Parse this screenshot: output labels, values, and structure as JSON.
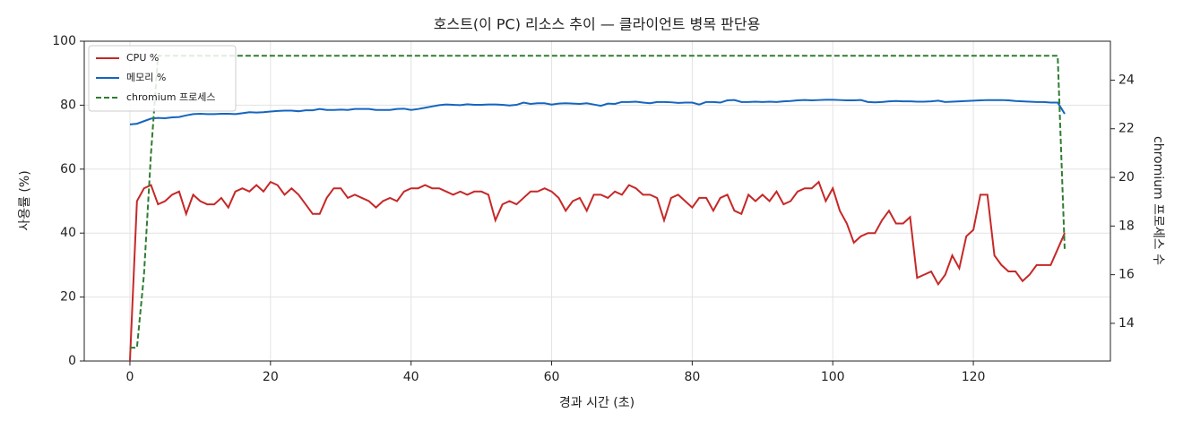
{
  "chart_data": {
    "type": "line",
    "title": "호스트(이 PC) 리소스 추이 — 클라이언트 병목 판단용",
    "xlabel": "경과 시간 (초)",
    "ylabel": "사용률 (%)",
    "y2label": "chromium 프로세스 수",
    "x": [
      0,
      1,
      2,
      3,
      4,
      5,
      6,
      7,
      8,
      9,
      10,
      11,
      12,
      13,
      14,
      15,
      16,
      17,
      18,
      19,
      20,
      21,
      22,
      23,
      24,
      25,
      26,
      27,
      28,
      29,
      30,
      31,
      32,
      33,
      34,
      35,
      36,
      37,
      38,
      39,
      40,
      41,
      42,
      43,
      44,
      45,
      46,
      47,
      48,
      49,
      50,
      51,
      52,
      53,
      54,
      55,
      56,
      57,
      58,
      59,
      60,
      61,
      62,
      63,
      64,
      65,
      66,
      67,
      68,
      69,
      70,
      71,
      72,
      73,
      74,
      75,
      76,
      77,
      78,
      79,
      80,
      81,
      82,
      83,
      84,
      85,
      86,
      87,
      88,
      89,
      90,
      91,
      92,
      93,
      94,
      95,
      96,
      97,
      98,
      99,
      100,
      101,
      102,
      103,
      104,
      105,
      106,
      107,
      108,
      109,
      110,
      111,
      112,
      113,
      114,
      115,
      116,
      117,
      118,
      119,
      120,
      121,
      122,
      123,
      124,
      125,
      126,
      127,
      128,
      129,
      130,
      131,
      132,
      133
    ],
    "series": [
      {
        "name": "CPU %",
        "color": "#c62828",
        "dash": false,
        "values": [
          0,
          50,
          54,
          55,
          49,
          50,
          52,
          53,
          46,
          52,
          50,
          49,
          49,
          51,
          48,
          53,
          54,
          53,
          55,
          53,
          56,
          55,
          52,
          54,
          52,
          49,
          46,
          46,
          51,
          54,
          54,
          51,
          52,
          51,
          50,
          48,
          50,
          51,
          50,
          53,
          54,
          54,
          55,
          54,
          54,
          53,
          52,
          53,
          52,
          53,
          53,
          52,
          44,
          49,
          50,
          49,
          51,
          53,
          53,
          54,
          53,
          51,
          47,
          50,
          51,
          47,
          52,
          52,
          51,
          53,
          52,
          55,
          54,
          52,
          52,
          51,
          44,
          51,
          52,
          50,
          48,
          51,
          51,
          47,
          51,
          52,
          47,
          46,
          52,
          50,
          52,
          50,
          53,
          49,
          50,
          53,
          54,
          54,
          56,
          50,
          54,
          47,
          43,
          37,
          39,
          40,
          40,
          44,
          47,
          43,
          43,
          45,
          26,
          27,
          28,
          24,
          27,
          33,
          29,
          39,
          41,
          52,
          52,
          33,
          30,
          28,
          28,
          25,
          27,
          30,
          30,
          30,
          35,
          40
        ]
      },
      {
        "name": "메모리 %",
        "color": "#1565c0",
        "dash": false,
        "values": [
          74,
          74.2,
          75,
          75.8,
          76,
          75.9,
          76.2,
          76.3,
          76.8,
          77.2,
          77.3,
          77.2,
          77.2,
          77.3,
          77.3,
          77.2,
          77.5,
          77.8,
          77.7,
          77.8,
          78,
          78.2,
          78.3,
          78.3,
          78.1,
          78.4,
          78.4,
          78.8,
          78.5,
          78.5,
          78.6,
          78.5,
          78.8,
          78.8,
          78.8,
          78.5,
          78.5,
          78.5,
          78.8,
          78.9,
          78.5,
          78.8,
          79.2,
          79.6,
          80,
          80.2,
          80.1,
          80,
          80.3,
          80.1,
          80.1,
          80.2,
          80.2,
          80.1,
          79.9,
          80.1,
          80.8,
          80.4,
          80.6,
          80.6,
          80.2,
          80.5,
          80.6,
          80.5,
          80.4,
          80.6,
          80.2,
          79.8,
          80.5,
          80.4,
          81,
          81,
          81.1,
          80.8,
          80.6,
          81,
          81,
          80.9,
          80.7,
          80.8,
          80.8,
          80.2,
          81,
          81,
          80.8,
          81.5,
          81.6,
          81,
          81,
          81.1,
          81,
          81.1,
          81,
          81.2,
          81.3,
          81.5,
          81.6,
          81.5,
          81.6,
          81.7,
          81.7,
          81.6,
          81.5,
          81.5,
          81.6,
          81,
          80.9,
          81,
          81.2,
          81.3,
          81.2,
          81.2,
          81.1,
          81.1,
          81.2,
          81.4,
          81,
          81.1,
          81.2,
          81.3,
          81.4,
          81.5,
          81.6,
          81.6,
          81.6,
          81.5,
          81.3,
          81.2,
          81.1,
          81,
          81,
          80.8,
          80.8,
          77.3
        ]
      },
      {
        "name": "chromium 프로세스",
        "color": "#2e7d32",
        "dash": true,
        "axis": "y2",
        "values": [
          13,
          13,
          16,
          21,
          25,
          25,
          25,
          25,
          25,
          25,
          25,
          25,
          25,
          25,
          25,
          25,
          25,
          25,
          25,
          25,
          25,
          25,
          25,
          25,
          25,
          25,
          25,
          25,
          25,
          25,
          25,
          25,
          25,
          25,
          25,
          25,
          25,
          25,
          25,
          25,
          25,
          25,
          25,
          25,
          25,
          25,
          25,
          25,
          25,
          25,
          25,
          25,
          25,
          25,
          25,
          25,
          25,
          25,
          25,
          25,
          25,
          25,
          25,
          25,
          25,
          25,
          25,
          25,
          25,
          25,
          25,
          25,
          25,
          25,
          25,
          25,
          25,
          25,
          25,
          25,
          25,
          25,
          25,
          25,
          25,
          25,
          25,
          25,
          25,
          25,
          25,
          25,
          25,
          25,
          25,
          25,
          25,
          25,
          25,
          25,
          25,
          25,
          25,
          25,
          25,
          25,
          25,
          25,
          25,
          25,
          25,
          25,
          25,
          25,
          25,
          25,
          25,
          25,
          25,
          25,
          25,
          25,
          25,
          25,
          25,
          25,
          25,
          25,
          25,
          25,
          25,
          25,
          25,
          17
        ]
      }
    ],
    "xlim": [
      -6.5,
      139.5
    ],
    "ylim": [
      0,
      100
    ],
    "y2lim": [
      12.45,
      25.6
    ],
    "xticks": [
      0,
      20,
      40,
      60,
      80,
      100,
      120
    ],
    "yticks": [
      0,
      20,
      40,
      60,
      80,
      100
    ],
    "y2ticks": [
      14,
      16,
      18,
      20,
      22,
      24
    ],
    "grid": true,
    "legend": "upper-left"
  }
}
